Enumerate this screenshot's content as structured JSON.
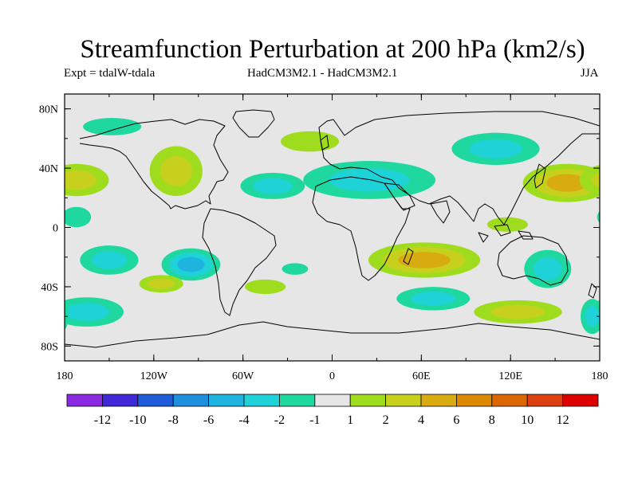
{
  "title": "Streamfunction Perturbation at 200 hPa (km2/s)",
  "subtitle_left": "Expt = tdalW-tdala",
  "subtitle_center": "HadCM3M2.1 - HadCM3M2.1",
  "subtitle_right": "JJA",
  "axes": {
    "x_ticks": [
      "180",
      "120W",
      "60W",
      "0",
      "60E",
      "120E",
      "180"
    ],
    "y_ticks": [
      "80N",
      "40N",
      "0",
      "40S",
      "80S"
    ],
    "lon_range": [
      -180,
      180
    ],
    "lat_range": [
      -90,
      90
    ]
  },
  "colors": {
    "map_background": "#e6e6e6",
    "coastline": "#000000"
  },
  "colorbar": {
    "label_values": [
      "-12",
      "-10",
      "-8",
      "-6",
      "-4",
      "-2",
      "-1",
      "1",
      "2",
      "4",
      "6",
      "8",
      "10",
      "12"
    ],
    "bins": [
      "#8a2be2",
      "#3e28d8",
      "#1f5ad8",
      "#1e8fdc",
      "#1fb4e0",
      "#1ed2d8",
      "#1ed8a0",
      "#e6e6e6",
      "#a0dc1e",
      "#c8d01e",
      "#d8ac10",
      "#dc8800",
      "#dc6600",
      "#dc4010",
      "#dc0000"
    ]
  },
  "chart_data": {
    "type": "heatmap",
    "title": "Streamfunction Perturbation at 200 hPa (km2/s)",
    "xlabel": "",
    "ylabel": "",
    "units": "km2/s",
    "season": "JJA",
    "regions": [
      {
        "name": "N Atlantic/Sahara low",
        "lon": 25,
        "lat": 32,
        "dlon": 45,
        "dlat": 13,
        "value": -3.5
      },
      {
        "name": "N Atlantic low core",
        "lon": -40,
        "lat": 28,
        "dlon": 22,
        "dlat": 9,
        "value": -2.5
      },
      {
        "name": "Siberia low",
        "lon": 110,
        "lat": 53,
        "dlon": 30,
        "dlat": 11,
        "value": -2.5
      },
      {
        "name": "Greenland high",
        "lon": -15,
        "lat": 58,
        "dlon": 20,
        "dlat": 7,
        "value": 1.5
      },
      {
        "name": "N America high",
        "lon": -105,
        "lat": 38,
        "dlon": 18,
        "dlat": 17,
        "value": 3.0
      },
      {
        "name": "NW Pacific high",
        "lon": 158,
        "lat": 30,
        "dlon": 30,
        "dlat": 13,
        "value": 4.0
      },
      {
        "name": "E Pacific high",
        "lon": -172,
        "lat": 32,
        "dlon": 22,
        "dlat": 11,
        "value": 3.5
      },
      {
        "name": "N Pacific low",
        "lon": -148,
        "lat": 68,
        "dlon": 20,
        "dlat": 6,
        "value": -1.5
      },
      {
        "name": "Indian Ocean high",
        "lon": 62,
        "lat": -22,
        "dlon": 38,
        "dlat": 12,
        "value": 4.5
      },
      {
        "name": "SE Pacific low",
        "lon": -95,
        "lat": -25,
        "dlon": 20,
        "dlat": 11,
        "value": -4.0
      },
      {
        "name": "S Pacific low",
        "lon": -165,
        "lat": -57,
        "dlon": 25,
        "dlat": 10,
        "value": -3.0
      },
      {
        "name": "Central Pacific low",
        "lon": -150,
        "lat": -22,
        "dlon": 20,
        "dlat": 10,
        "value": -2.0
      },
      {
        "name": "S Indian low",
        "lon": 68,
        "lat": -48,
        "dlon": 25,
        "dlat": 8,
        "value": -2.5
      },
      {
        "name": "Australia low",
        "lon": 145,
        "lat": -28,
        "dlon": 16,
        "dlat": 13,
        "value": -3.0
      },
      {
        "name": "S Ocean high 120E",
        "lon": 125,
        "lat": -57,
        "dlon": 30,
        "dlat": 8,
        "value": 3.0
      },
      {
        "name": "S Pacific high",
        "lon": -115,
        "lat": -38,
        "dlon": 15,
        "dlat": 6,
        "value": 2.5
      },
      {
        "name": "S Atlantic high",
        "lon": -45,
        "lat": -40,
        "dlon": 14,
        "dlat": 5,
        "value": 1.5
      },
      {
        "name": "S Atlantic low",
        "lon": -25,
        "lat": -28,
        "dlon": 9,
        "dlat": 4,
        "value": -1.5
      },
      {
        "name": "SW Pacific low edge",
        "lon": 175,
        "lat": -60,
        "dlon": 8,
        "dlat": 12,
        "value": -2.0
      },
      {
        "name": "Maritime Continent high",
        "lon": 118,
        "lat": 2,
        "dlon": 14,
        "dlat": 5,
        "value": 1.5
      },
      {
        "name": "E Pacific low",
        "lon": -172,
        "lat": 7,
        "dlon": 10,
        "dlat": 7,
        "value": -1.5
      }
    ]
  }
}
